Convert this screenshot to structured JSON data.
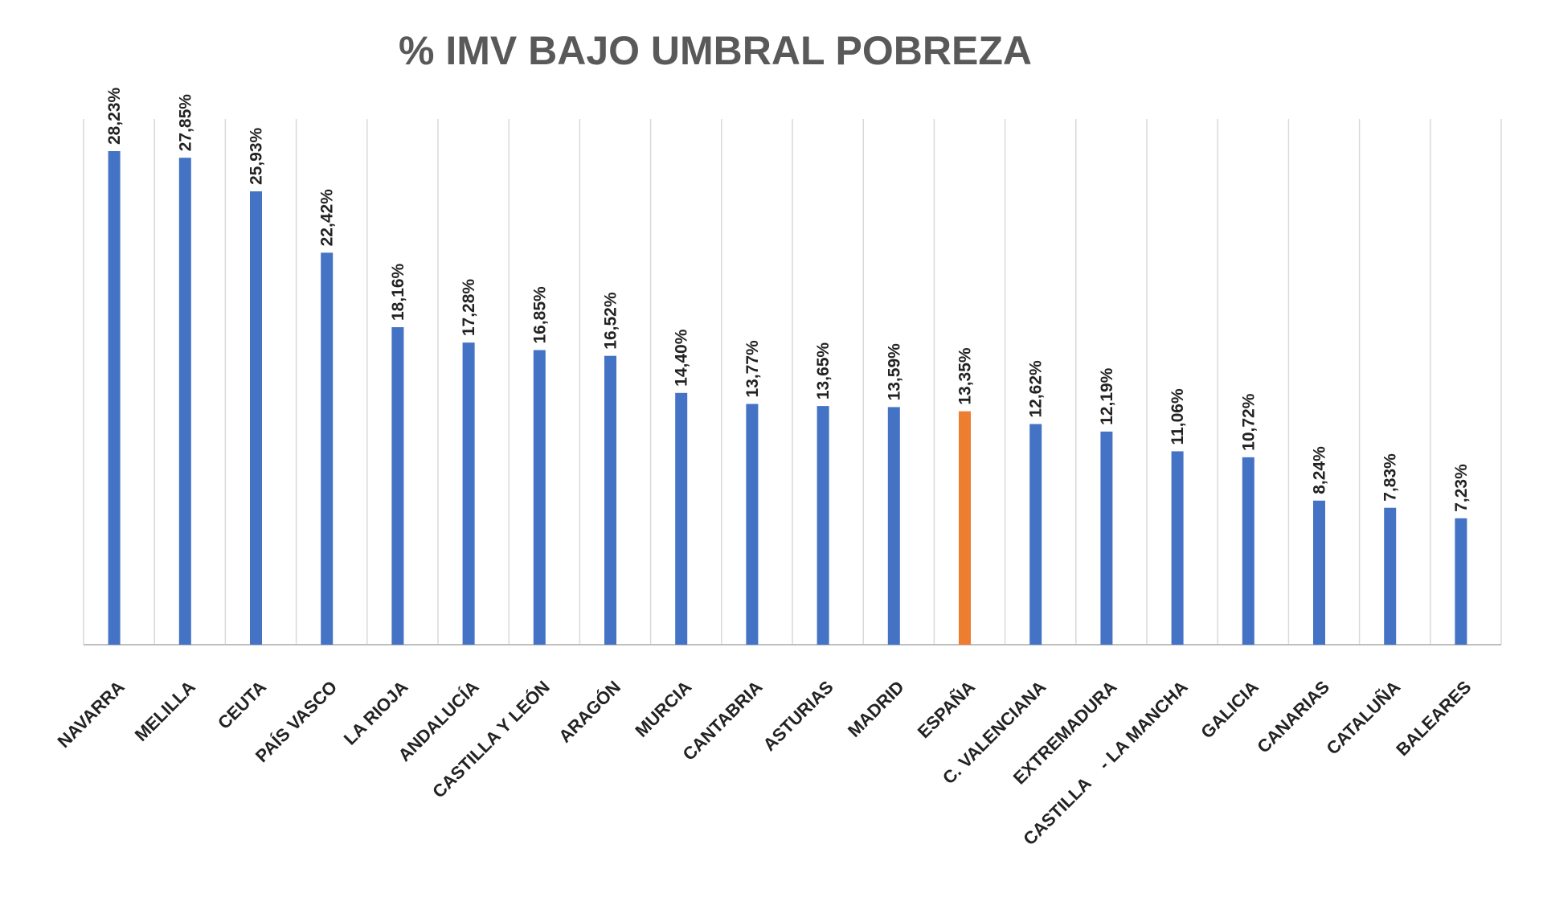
{
  "chart_data": {
    "type": "bar",
    "title": "% IMV BAJO UMBRAL POBREZA",
    "xlabel": "",
    "ylabel": "",
    "ylim": [
      0,
      30
    ],
    "grid": "vertical",
    "legend": "none",
    "categories": [
      "NAVARRA",
      "MELILLA",
      "CEUTA",
      "PAÍS VASCO",
      "LA RIOJA",
      "ANDALUCÍA",
      "CASTILLA Y LEÓN",
      "ARAGÓN",
      "MURCIA",
      "CANTABRIA",
      "ASTURIAS",
      "MADRID",
      "ESPAÑA",
      "C. VALENCIANA",
      "EXTREMADURA",
      "CASTILLA    - LA MANCHA",
      "GALICIA",
      "CANARIAS",
      "CATALUÑA",
      "BALEARES"
    ],
    "values": [
      28.23,
      27.85,
      25.93,
      22.42,
      18.16,
      17.28,
      16.85,
      16.52,
      14.4,
      13.77,
      13.65,
      13.59,
      13.35,
      12.62,
      12.19,
      11.06,
      10.72,
      8.24,
      7.83,
      7.23
    ],
    "data_labels": [
      "28,23%",
      "27,85%",
      "25,93%",
      "22,42%",
      "18,16%",
      "17,28%",
      "16,85%",
      "16,52%",
      "14,40%",
      "13,77%",
      "13,65%",
      "13,59%",
      "13,35%",
      "12,62%",
      "12,19%",
      "11,06%",
      "10,72%",
      "8,24%",
      "7,83%",
      "7,23%"
    ],
    "colors": {
      "default": "#4472c4",
      "highlight": "#ed7d31",
      "highlight_category": "ESPAÑA"
    }
  }
}
